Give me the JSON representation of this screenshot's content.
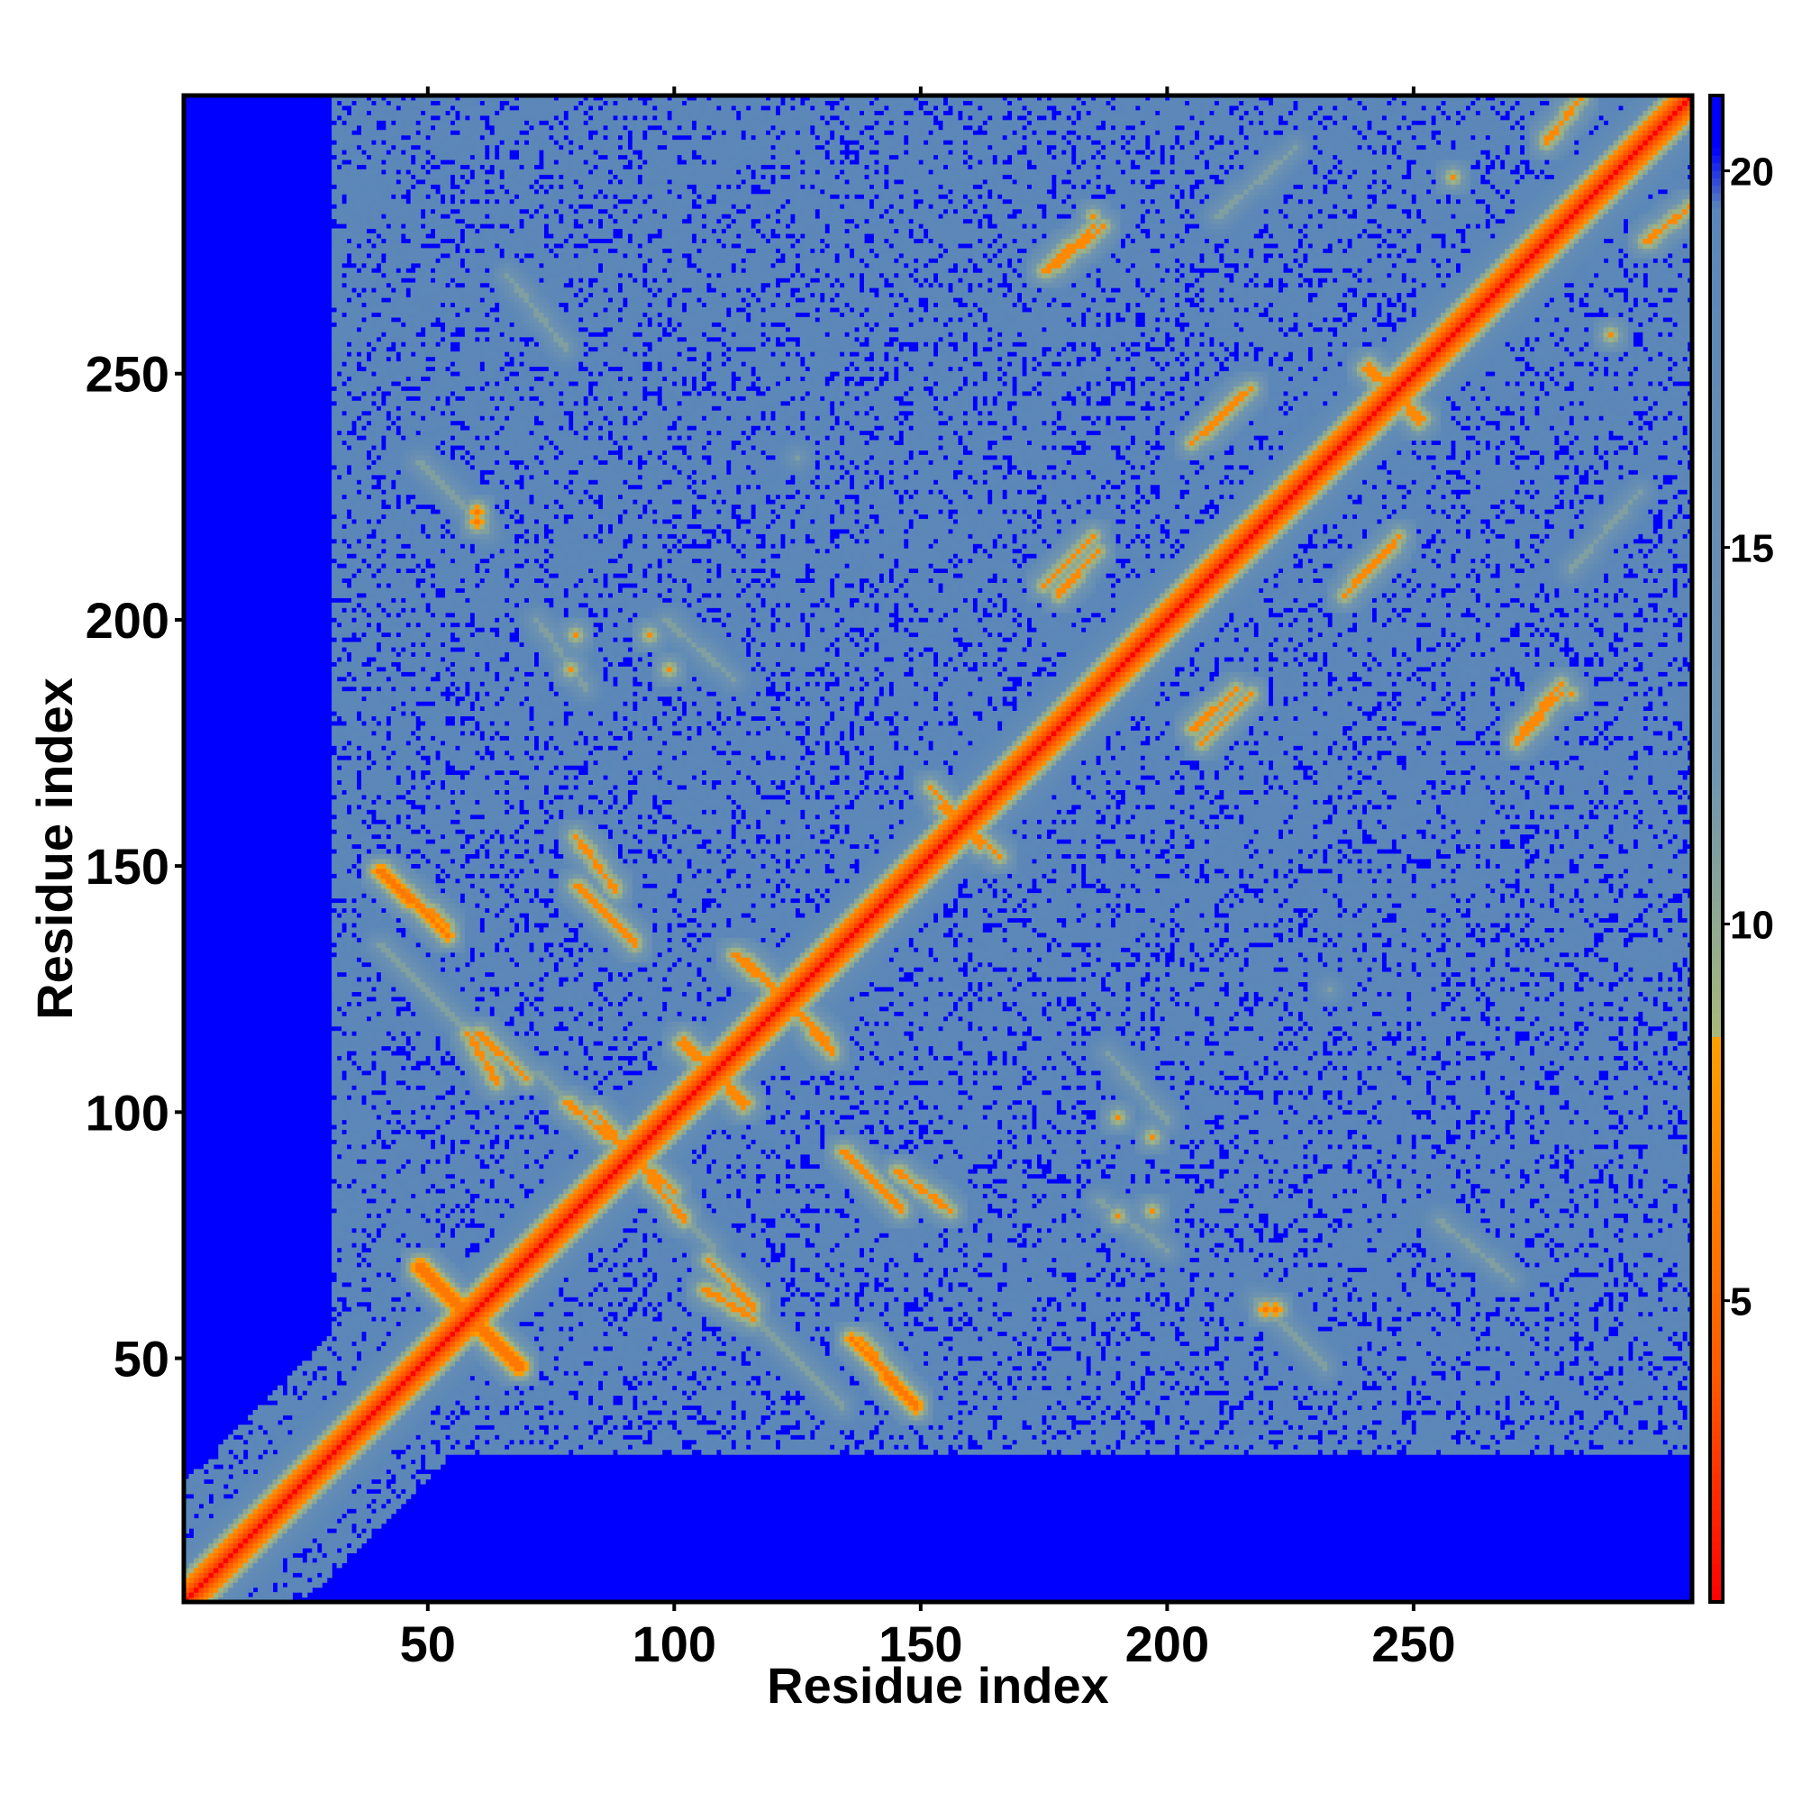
{
  "chart_data": {
    "type": "heatmap",
    "title": "",
    "xlabel": "Residue index",
    "ylabel": "Residue index",
    "n_residues": 306,
    "xlim": [
      1,
      306
    ],
    "ylim": [
      1,
      306
    ],
    "x_ticks": [
      50,
      100,
      150,
      200,
      250
    ],
    "y_ticks": [
      50,
      100,
      150,
      200,
      250
    ],
    "colorbar": {
      "range": [
        1,
        21
      ],
      "ticks": [
        5,
        10,
        15,
        20
      ],
      "colors": [
        {
          "value": 1,
          "color": "#ff0000"
        },
        {
          "value": 4,
          "color": "#ff5a00"
        },
        {
          "value": 8.5,
          "color": "#ffa000"
        },
        {
          "value": 8.5,
          "color": "#a9b97a"
        },
        {
          "value": 12,
          "color": "#6f94b0"
        },
        {
          "value": 19.5,
          "color": "#5b87b8"
        },
        {
          "value": 20.3,
          "color": "#0000ff"
        },
        {
          "value": 21,
          "color": "#0000ff"
        }
      ]
    },
    "background_value": 21,
    "diagonal": {
      "from": 1,
      "to": 306,
      "value": 3
    },
    "contact_bands": [
      {
        "from": [
          58,
          58
        ],
        "to": [
          68,
          48
        ],
        "value": 6
      },
      {
        "from": [
          48,
          69
        ],
        "to": [
          58,
          59
        ],
        "value": 6
      },
      {
        "from": [
          40,
          149
        ],
        "to": [
          54,
          136
        ],
        "value": 6
      },
      {
        "from": [
          60,
          116
        ],
        "to": [
          70,
          107
        ],
        "value": 7
      },
      {
        "from": [
          80,
          156
        ],
        "to": [
          88,
          145
        ],
        "value": 7
      },
      {
        "from": [
          84,
          100
        ],
        "to": [
          92,
          90
        ],
        "value": 7
      },
      {
        "from": [
          92,
          90
        ],
        "to": [
          102,
          78
        ],
        "value": 7
      },
      {
        "from": [
          106,
          64
        ],
        "to": [
          116,
          58
        ],
        "value": 7
      },
      {
        "from": [
          102,
          115
        ],
        "to": [
          114,
          101
        ],
        "value": 7
      },
      {
        "from": [
          114,
          131
        ],
        "to": [
          126,
          120
        ],
        "value": 7
      },
      {
        "from": [
          124,
          121
        ],
        "to": [
          132,
          112
        ],
        "value": 7
      },
      {
        "from": [
          134,
          92
        ],
        "to": [
          146,
          80
        ],
        "value": 7
      },
      {
        "from": [
          138,
          54
        ],
        "to": [
          148,
          41
        ],
        "value": 7
      },
      {
        "from": [
          152,
          166
        ],
        "to": [
          162,
          154
        ],
        "value": 7
      },
      {
        "from": [
          175,
          207
        ],
        "to": [
          185,
          217
        ],
        "value": 7
      },
      {
        "from": [
          205,
          178
        ],
        "to": [
          214,
          186
        ],
        "value": 7
      },
      {
        "from": [
          205,
          236
        ],
        "to": [
          215,
          246
        ],
        "value": 7
      },
      {
        "from": [
          238,
          207
        ],
        "to": [
          247,
          217
        ],
        "value": 7
      },
      {
        "from": [
          272,
          177
        ],
        "to": [
          280,
          187
        ],
        "value": 7
      },
      {
        "from": [
          240,
          251
        ],
        "to": [
          252,
          241
        ],
        "value": 7
      },
      {
        "from": [
          175,
          271
        ],
        "to": [
          185,
          280
        ],
        "value": 7
      },
      {
        "from": [
          297,
          277
        ],
        "to": [
          306,
          284
        ],
        "value": 7
      },
      {
        "from": [
          40,
          134
        ],
        "to": [
          62,
          112
        ],
        "value": 11
      },
      {
        "from": [
          72,
          108
        ],
        "to": [
          100,
          80
        ],
        "value": 11
      },
      {
        "from": [
          188,
          112
        ],
        "to": [
          200,
          98
        ],
        "value": 11
      },
      {
        "from": [
          218,
          62
        ],
        "to": [
          232,
          48
        ],
        "value": 11
      },
      {
        "from": [
          186,
          82
        ],
        "to": [
          200,
          72
        ],
        "value": 11
      },
      {
        "from": [
          255,
          78
        ],
        "to": [
          270,
          66
        ],
        "value": 11
      },
      {
        "from": [
          282,
          210
        ],
        "to": [
          296,
          226
        ],
        "value": 11
      }
    ],
    "contact_spots": [
      {
        "x": 60,
        "y": 222,
        "value": 6
      },
      {
        "x": 80,
        "y": 197,
        "value": 7
      },
      {
        "x": 95,
        "y": 197,
        "value": 7
      },
      {
        "x": 125,
        "y": 233,
        "value": 11
      },
      {
        "x": 190,
        "y": 99,
        "value": 7
      },
      {
        "x": 190,
        "y": 79,
        "value": 7
      },
      {
        "x": 220,
        "y": 60,
        "value": 6
      },
      {
        "x": 185,
        "y": 282,
        "value": 7
      },
      {
        "x": 290,
        "y": 258,
        "value": 7
      }
    ]
  }
}
